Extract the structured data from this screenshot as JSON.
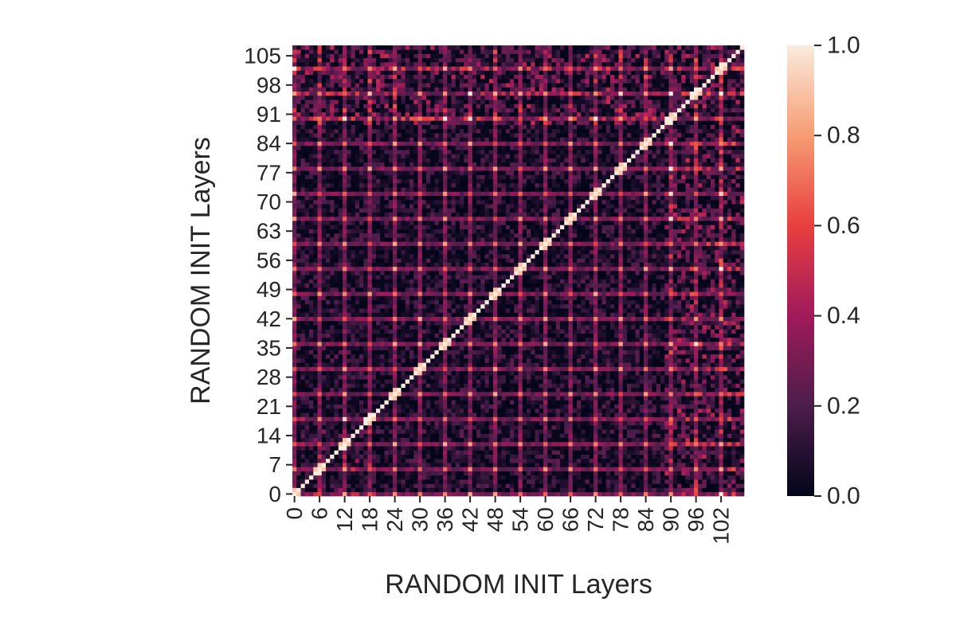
{
  "chart_data": {
    "type": "heatmap",
    "title": "",
    "xlabel": "RANDOM INIT Layers",
    "ylabel": "RANDOM INIT Layers",
    "n_layers": 108,
    "x_tick_labels": [
      "0",
      "6",
      "12",
      "18",
      "24",
      "30",
      "36",
      "42",
      "48",
      "54",
      "60",
      "66",
      "72",
      "78",
      "84",
      "90",
      "96",
      "102"
    ],
    "y_tick_labels": [
      "0",
      "7",
      "14",
      "21",
      "28",
      "35",
      "42",
      "49",
      "56",
      "63",
      "70",
      "77",
      "84",
      "91",
      "98",
      "105"
    ],
    "colorbar": {
      "min": 0.0,
      "max": 1.0,
      "tick_labels": [
        "0.0",
        "0.2",
        "0.4",
        "0.6",
        "0.8",
        "1.0"
      ],
      "colormap": "rocket",
      "stops": [
        "#03051a",
        "#4c1d4b",
        "#a11a5b",
        "#e83f3f",
        "#f69c73",
        "#faebdd"
      ]
    },
    "pattern": {
      "diagonal_value": 1.0,
      "periodic_layer_interval": 6,
      "periodic_value": 0.85,
      "background_range": [
        0.0,
        0.25
      ]
    },
    "grid": false,
    "origin": "lower"
  }
}
